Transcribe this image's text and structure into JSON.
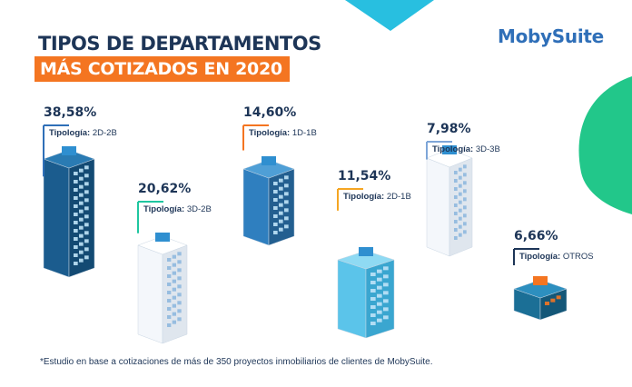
{
  "title_line1": "TIPOS DE DEPARTAMENTOS",
  "title_line2": "MÁS COTIZADOS EN 2020",
  "logo": {
    "text_left": "Moby",
    "text_right": "Suite"
  },
  "footnote": "*Estudio en base a cotizaciones de más de 350 proyectos inmobiliarios de clientes de MobySuite.",
  "colors": {
    "navy": "#1d3557",
    "orange": "#f47521",
    "blue": "#2f6fb8",
    "teal": "#1fc6a0",
    "cyan": "#29b6e0"
  },
  "chart_data": {
    "type": "bar",
    "categories": [
      "2D-2B",
      "3D-2B",
      "1D-1B",
      "2D-1B",
      "3D-3B",
      "OTROS"
    ],
    "values": [
      38.58,
      20.62,
      14.6,
      11.54,
      7.98,
      6.66
    ],
    "value_labels": [
      "38,58%",
      "20,62%",
      "14,60%",
      "11,54%",
      "7,98%",
      "6,66%"
    ],
    "label_prefix": "Tipología:",
    "marker_colors": [
      "#2f6fb8",
      "#1fc6a0",
      "#f47521",
      "#f5a623",
      "#7ea6d8",
      "#1d3557"
    ]
  }
}
